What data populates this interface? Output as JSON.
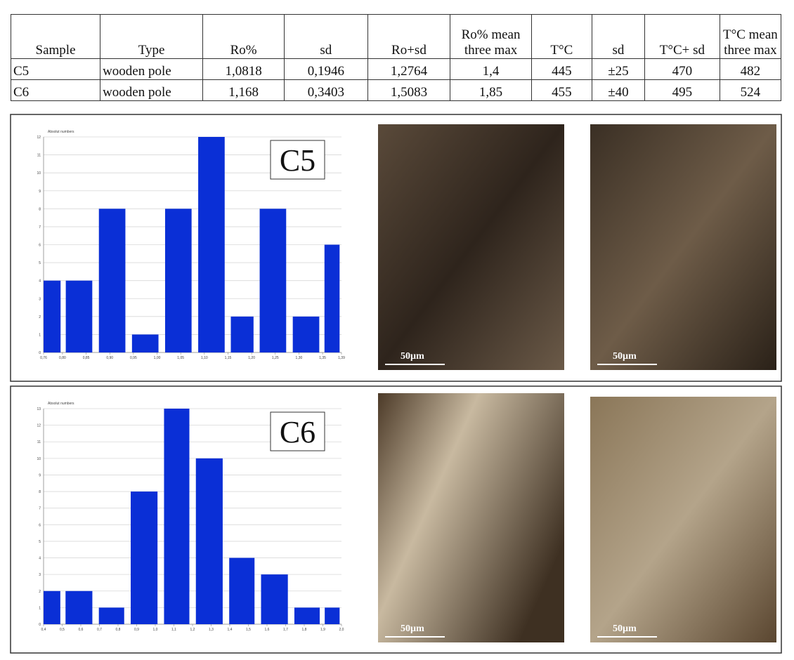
{
  "table": {
    "header": [
      "Sample",
      "Type",
      "Ro%",
      "sd",
      "Ro+sd",
      "Ro% mean three max",
      "T°C",
      "sd",
      "T°C+ sd",
      "T°C mean three max"
    ],
    "rows": [
      [
        "C5",
        "wooden pole",
        "1,0818",
        "0,1946",
        "1,2764",
        "1,4",
        "445",
        "±25",
        "470",
        "482"
      ],
      [
        "C6",
        "wooden pole",
        "1,168",
        "0,3403",
        "1,5083",
        "1,85",
        "455",
        "±40",
        "495",
        "524"
      ]
    ]
  },
  "chart_data": [
    {
      "type": "histogram",
      "label": "C5",
      "y_label": "Absolut numbers",
      "color": "#0a2fd6",
      "grid": true,
      "bins": [
        0.76,
        0.8,
        0.87,
        0.94,
        1.01,
        1.08,
        1.15,
        1.21,
        1.28,
        1.35,
        1.39
      ],
      "values": [
        4,
        4,
        8,
        1,
        8,
        12,
        2,
        8,
        2,
        6
      ],
      "xlim": [
        0.76,
        1.39
      ],
      "xticks": [
        {
          "value": 0.76,
          "label": "0,76"
        },
        {
          "value": 0.8,
          "label": "0,80"
        },
        {
          "value": 0.85,
          "label": "0,85"
        },
        {
          "value": 0.9,
          "label": "0,90"
        },
        {
          "value": 0.95,
          "label": "0,95"
        },
        {
          "value": 1,
          "label": "1,00"
        },
        {
          "value": 1.05,
          "label": "1,05"
        },
        {
          "value": 1.1,
          "label": "1,10"
        },
        {
          "value": 1.15,
          "label": "1,15"
        },
        {
          "value": 1.2,
          "label": "1,20"
        },
        {
          "value": 1.25,
          "label": "1,25"
        },
        {
          "value": 1.3,
          "label": "1,30"
        },
        {
          "value": 1.35,
          "label": "1,35"
        },
        {
          "value": 1.39,
          "label": "1,39"
        }
      ],
      "ylim": [
        0,
        12
      ],
      "yticks": [
        0,
        1,
        2,
        3,
        4,
        5,
        6,
        7,
        8,
        9,
        10,
        11,
        12
      ]
    },
    {
      "type": "histogram",
      "label": "C6",
      "y_label": "Absolut numbers",
      "color": "#0a2fd6",
      "grid": true,
      "bins": [
        0.4,
        0.5,
        0.68,
        0.85,
        1.03,
        1.2,
        1.38,
        1.55,
        1.73,
        1.9,
        2
      ],
      "values": [
        2,
        2,
        1,
        8,
        13,
        10,
        4,
        3,
        1,
        1
      ],
      "xlim": [
        0.4,
        2
      ],
      "xticks": [
        {
          "value": 0.4,
          "label": "0,4"
        },
        {
          "value": 0.5,
          "label": "0,5"
        },
        {
          "value": 0.6,
          "label": "0,6"
        },
        {
          "value": 0.7,
          "label": "0,7"
        },
        {
          "value": 0.8,
          "label": "0,8"
        },
        {
          "value": 0.9,
          "label": "0,9"
        },
        {
          "value": 1,
          "label": "1,0"
        },
        {
          "value": 1.1,
          "label": "1,1"
        },
        {
          "value": 1.2,
          "label": "1,2"
        },
        {
          "value": 1.3,
          "label": "1,3"
        },
        {
          "value": 1.4,
          "label": "1,4"
        },
        {
          "value": 1.5,
          "label": "1,5"
        },
        {
          "value": 1.6,
          "label": "1,6"
        },
        {
          "value": 1.7,
          "label": "1,7"
        },
        {
          "value": 1.8,
          "label": "1,8"
        },
        {
          "value": 1.9,
          "label": "1,9"
        },
        {
          "value": 2,
          "label": "2,0"
        }
      ],
      "ylim": [
        0,
        13
      ],
      "yticks": [
        0,
        1,
        2,
        3,
        4,
        5,
        6,
        7,
        8,
        9,
        10,
        11,
        12,
        13
      ]
    }
  ],
  "images": [
    [
      {
        "scale": "50µm"
      },
      {
        "scale": "50µm"
      }
    ],
    [
      {
        "scale": "50µm"
      },
      {
        "scale": "50µm"
      }
    ]
  ]
}
